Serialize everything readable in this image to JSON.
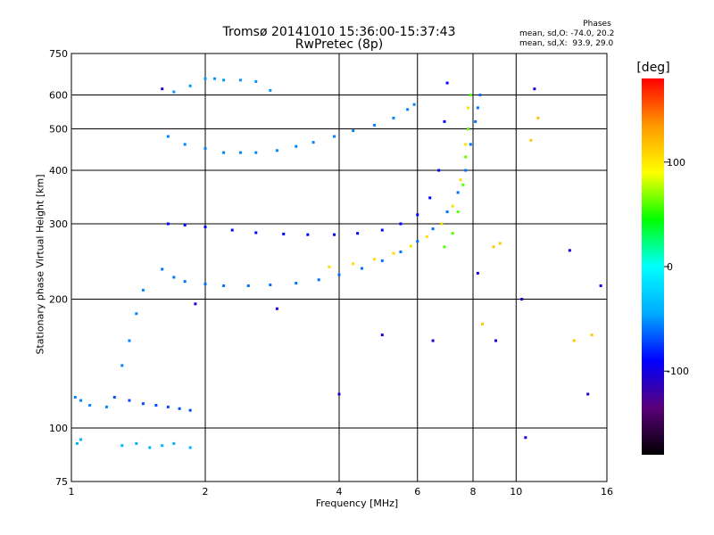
{
  "chart_data": {
    "type": "scatter",
    "title": "Tromsø 20141010 15:36:00-15:37:43",
    "subtitle": "RwPretec (8p)",
    "xlabel": "Frequency [MHz]",
    "ylabel": "Stationary phase Virtual Height [km]",
    "x_scale": "log",
    "y_scale": "log",
    "xlim": [
      1,
      16
    ],
    "ylim": [
      75,
      750
    ],
    "x_ticks": [
      1,
      2,
      4,
      6,
      8,
      10,
      16
    ],
    "x_tick_labels": [
      "1",
      "2",
      "4",
      "6",
      "8",
      "10",
      "16"
    ],
    "y_ticks": [
      75,
      100,
      200,
      300,
      400,
      500,
      600,
      750
    ],
    "y_tick_labels": [
      "75",
      "100",
      "200",
      "300",
      "400",
      "500",
      "600",
      "750"
    ],
    "grid": true,
    "colorbar": {
      "title": "[deg]",
      "range": [
        -180,
        180
      ],
      "ticks": [
        -100,
        0,
        100
      ],
      "tick_labels": [
        "-100",
        "0",
        "100"
      ],
      "colormap": [
        "#000000",
        "#5a007a",
        "#0000ff",
        "#00aaff",
        "#00ffff",
        "#00ff00",
        "#ffff00",
        "#ff9900",
        "#ff0000"
      ]
    },
    "phases": {
      "title": "Phases",
      "line1": "mean, sd,O: -74.0, 20.2",
      "line2": "mean, sd,X:  93.9, 29.0"
    },
    "series": [
      {
        "phase_deg": -55,
        "x": [
          1.65,
          1.8,
          2.0,
          2.2,
          2.4,
          2.6,
          2.9,
          3.2,
          3.5,
          3.9,
          4.3,
          4.8,
          5.3,
          5.7,
          5.9
        ],
        "y": [
          480,
          460,
          450,
          440,
          440,
          440,
          445,
          455,
          465,
          480,
          495,
          510,
          530,
          555,
          570
        ]
      },
      {
        "phase_deg": -90,
        "x": [
          1.65,
          1.8,
          2.0,
          2.3,
          2.6,
          3.0,
          3.4,
          3.9,
          4.4,
          5.0,
          5.5,
          6.0,
          6.4,
          6.7,
          6.9,
          7.0
        ],
        "y": [
          300,
          298,
          295,
          290,
          286,
          284,
          283,
          283,
          285,
          290,
          300,
          315,
          345,
          400,
          520,
          640
        ]
      },
      {
        "phase_deg": -60,
        "x": [
          1.6,
          1.7,
          1.8,
          2.0,
          2.2,
          2.5,
          2.8,
          3.2,
          3.6,
          4.0,
          4.5,
          5.0,
          5.5,
          6.0,
          6.5,
          7.0,
          7.4,
          7.7,
          7.9,
          8.1,
          8.2,
          8.3
        ],
        "y": [
          235,
          225,
          220,
          217,
          215,
          215,
          216,
          218,
          222,
          228,
          236,
          246,
          258,
          273,
          292,
          320,
          355,
          400,
          460,
          520,
          560,
          600
        ]
      },
      {
        "phase_deg": 105,
        "x": [
          3.8,
          4.3,
          4.8,
          5.3,
          5.8,
          6.3,
          6.8,
          7.2,
          7.5,
          7.7,
          7.8
        ],
        "y": [
          238,
          242,
          248,
          256,
          266,
          280,
          300,
          330,
          380,
          460,
          560
        ]
      },
      {
        "phase_deg": 60,
        "x": [
          6.9,
          7.2,
          7.4,
          7.6,
          7.7,
          7.8,
          7.9
        ],
        "y": [
          265,
          285,
          320,
          370,
          430,
          500,
          600
        ]
      },
      {
        "phase_deg": -55,
        "x": [
          1.02,
          1.05,
          1.1,
          1.2,
          1.3,
          1.35,
          1.4,
          1.45
        ],
        "y": [
          118,
          116,
          113,
          112,
          140,
          160,
          185,
          210
        ]
      },
      {
        "phase_deg": -70,
        "x": [
          1.25,
          1.35,
          1.45,
          1.55,
          1.65,
          1.75,
          1.85
        ],
        "y": [
          118,
          116,
          114,
          113,
          112,
          111,
          110
        ]
      },
      {
        "phase_deg": -40,
        "x": [
          1.03,
          1.05,
          1.3,
          1.4,
          1.5,
          1.6,
          1.7,
          1.85
        ],
        "y": [
          92,
          94,
          91,
          92,
          90,
          91,
          92,
          90
        ]
      },
      {
        "phase_deg": -50,
        "x": [
          1.7,
          1.85,
          2.0,
          2.1,
          2.2,
          2.4,
          2.6,
          2.8
        ],
        "y": [
          610,
          630,
          655,
          655,
          650,
          650,
          645,
          615
        ]
      },
      {
        "phase_deg": -100,
        "x": [
          1.6,
          1.9,
          2.9,
          4.0,
          5.0,
          6.5,
          8.2,
          9.0,
          10.3,
          10.5,
          11.0,
          13.2,
          14.5,
          15.5
        ],
        "y": [
          620,
          195,
          190,
          120,
          165,
          160,
          230,
          160,
          200,
          95,
          620,
          260,
          120,
          215
        ]
      },
      {
        "phase_deg": 115,
        "x": [
          8.4,
          8.9,
          9.2,
          10.8,
          11.2,
          13.5,
          14.8
        ],
        "y": [
          175,
          265,
          270,
          470,
          530,
          160,
          165
        ]
      }
    ]
  }
}
